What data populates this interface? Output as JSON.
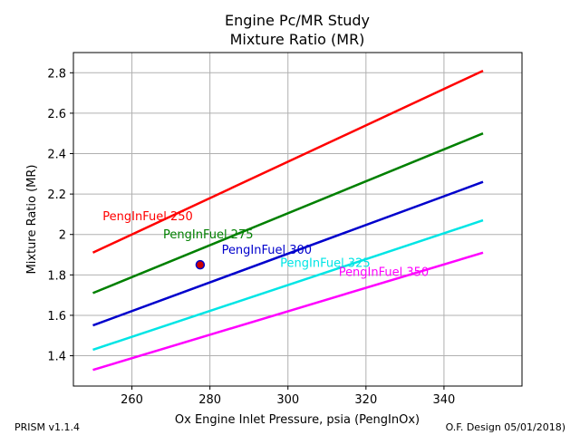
{
  "chart_data": {
    "type": "line",
    "title": "Engine Pc/MR Study",
    "subtitle": "Mixture Ratio (MR)",
    "xlabel": "Ox Engine Inlet Pressure, psia (PengInOx)",
    "ylabel": "Mixture Ratio (MR)",
    "xlim": [
      245,
      360
    ],
    "ylim": [
      1.25,
      2.9
    ],
    "xticks": [
      260,
      280,
      300,
      320,
      340
    ],
    "yticks": [
      1.4,
      1.6,
      1.8,
      2,
      2.2,
      2.4,
      2.6,
      2.8
    ],
    "xtick_labels": [
      "260",
      "280",
      "300",
      "320",
      "340"
    ],
    "ytick_labels": [
      "1.4",
      "1.6",
      "1.8",
      "2",
      "2.2",
      "2.4",
      "2.6",
      "2.8"
    ],
    "grid": true,
    "series": [
      {
        "name": "PengInFuel 250",
        "color": "#ff0000",
        "x": [
          250,
          350
        ],
        "y": [
          1.91,
          2.81
        ],
        "label_at": [
          252.5,
          2.07
        ]
      },
      {
        "name": "PengInFuel 275",
        "color": "#008000",
        "x": [
          250,
          350
        ],
        "y": [
          1.71,
          2.5
        ],
        "label_at": [
          268,
          1.98
        ]
      },
      {
        "name": "PengInFuel 300",
        "color": "#0000cc",
        "x": [
          250,
          350
        ],
        "y": [
          1.55,
          2.26
        ],
        "label_at": [
          283,
          1.905
        ]
      },
      {
        "name": "PengInFuel 325",
        "color": "#00e5e5",
        "x": [
          250,
          350
        ],
        "y": [
          1.43,
          2.07
        ],
        "label_at": [
          298,
          1.84
        ]
      },
      {
        "name": "PengInFuel 350",
        "color": "#ff00ff",
        "x": [
          250,
          350
        ],
        "y": [
          1.33,
          1.91
        ],
        "label_at": [
          313,
          1.795
        ]
      }
    ],
    "points": [
      {
        "x": 277.5,
        "y": 1.85,
        "fill": "#cc0000",
        "edge": "#0000cc"
      }
    ]
  },
  "footer": {
    "left": "PRISM v1.1.4",
    "right": "O.F. Design 05/01/2018)"
  }
}
